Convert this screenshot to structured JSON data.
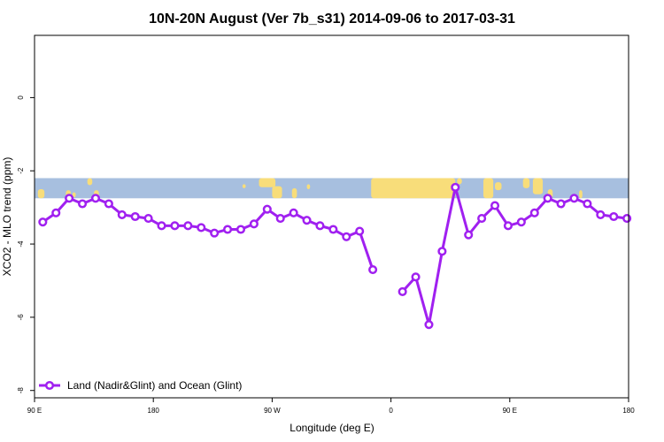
{
  "chart_data": {
    "type": "line",
    "title": "10N-20N August (Ver 7b_s31)   2014-09-06 to 2017-03-31",
    "xlabel": "Longitude (deg E)",
    "ylabel": "XCO2 - MLO trend (ppm)",
    "xlim": [
      90,
      450
    ],
    "ylim": [
      -8.2,
      1.7
    ],
    "x_ticks": [
      {
        "value": 90,
        "label": "90 E"
      },
      {
        "value": 180,
        "label": "180"
      },
      {
        "value": 270,
        "label": "90 W"
      },
      {
        "value": 360,
        "label": "0"
      },
      {
        "value": 450,
        "label": "90 E"
      },
      {
        "value": 540,
        "label": "180"
      }
    ],
    "y_ticks": [
      {
        "value": 0,
        "label": "0"
      },
      {
        "value": -2,
        "label": "-2"
      },
      {
        "value": -4,
        "label": "-4"
      },
      {
        "value": -6,
        "label": "-6"
      },
      {
        "value": -8,
        "label": "-8"
      }
    ],
    "series": [
      {
        "name": "Land (Nadir&Glint) and Ocean (Glint)",
        "color": "#a020f0",
        "segments": [
          [
            [
              95,
              -3.4
            ],
            [
              103,
              -3.15
            ],
            [
              111,
              -2.75
            ],
            [
              119,
              -2.9
            ],
            [
              127,
              -2.75
            ],
            [
              135,
              -2.9
            ],
            [
              143,
              -3.2
            ],
            [
              151,
              -3.25
            ],
            [
              159,
              -3.3
            ],
            [
              167,
              -3.5
            ],
            [
              175,
              -3.5
            ],
            [
              183,
              -3.5
            ],
            [
              191,
              -3.55
            ],
            [
              199,
              -3.7
            ],
            [
              207,
              -3.6
            ],
            [
              215,
              -3.6
            ],
            [
              223,
              -3.45
            ],
            [
              231,
              -3.05
            ],
            [
              239,
              -3.3
            ],
            [
              247,
              -3.15
            ],
            [
              255,
              -3.35
            ],
            [
              263,
              -3.5
            ],
            [
              271,
              -3.6
            ],
            [
              279,
              -3.8
            ],
            [
              287,
              -3.65
            ],
            [
              295,
              -4.7
            ]
          ],
          [
            [
              313,
              -5.3
            ],
            [
              321,
              -4.9
            ],
            [
              329,
              -6.2
            ],
            [
              337,
              -4.2
            ],
            [
              345,
              -2.45
            ],
            [
              353,
              -3.75
            ],
            [
              361,
              -3.3
            ],
            [
              369,
              -2.95
            ],
            [
              377,
              -3.5
            ],
            [
              385,
              -3.4
            ],
            [
              393,
              -3.15
            ],
            [
              401,
              -2.75
            ],
            [
              409,
              -2.9
            ],
            [
              417,
              -2.75
            ],
            [
              425,
              -2.9
            ],
            [
              433,
              -3.2
            ],
            [
              441,
              -3.25
            ],
            [
              449,
              -3.3
            ]
          ]
        ]
      }
    ],
    "map_strip": {
      "y_range": [
        -2.75,
        -2.2
      ],
      "ocean_color": "#a7bfdf",
      "land_color": "#f8dd7a"
    },
    "legend_position": "bottom-left",
    "grid": false
  }
}
